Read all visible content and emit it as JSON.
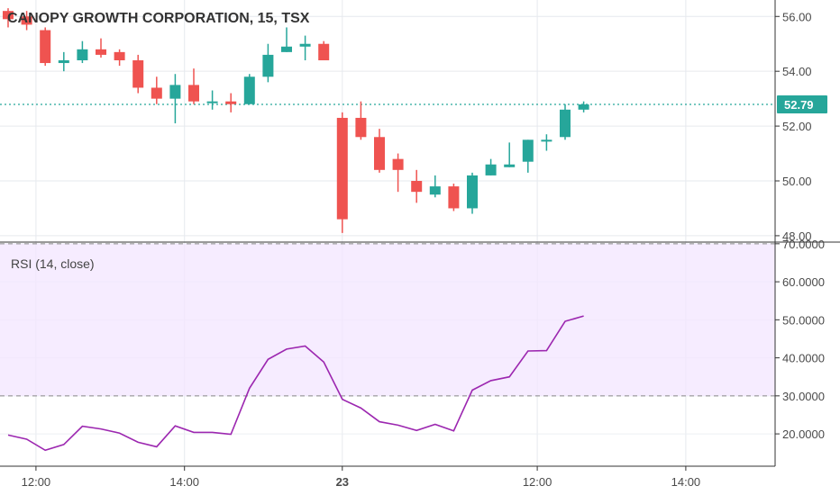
{
  "chart_data": [
    {
      "type": "candlestick",
      "title": "CANOPY GROWTH CORPORATION, 15, TSX",
      "ylim": [
        47.8,
        56.6
      ],
      "y_ticks": [
        "48.00",
        "50.00",
        "52.00",
        "54.00",
        "56.00"
      ],
      "last_price": "52.79",
      "colors": {
        "up": "#26a69a",
        "down": "#ef5350",
        "last_price": "#26a69a"
      },
      "candles": [
        {
          "x": 0,
          "o": 56.2,
          "h": 56.3,
          "l": 55.6,
          "c": 55.9
        },
        {
          "x": 1,
          "o": 56.0,
          "h": 56.2,
          "l": 55.5,
          "c": 55.7
        },
        {
          "x": 2,
          "o": 55.5,
          "h": 55.6,
          "l": 54.2,
          "c": 54.3
        },
        {
          "x": 3,
          "o": 54.3,
          "h": 54.7,
          "l": 54.0,
          "c": 54.4
        },
        {
          "x": 4,
          "o": 54.4,
          "h": 55.1,
          "l": 54.3,
          "c": 54.8
        },
        {
          "x": 5,
          "o": 54.8,
          "h": 55.2,
          "l": 54.5,
          "c": 54.6
        },
        {
          "x": 6,
          "o": 54.7,
          "h": 54.8,
          "l": 54.2,
          "c": 54.4
        },
        {
          "x": 7,
          "o": 54.4,
          "h": 54.6,
          "l": 53.2,
          "c": 53.4
        },
        {
          "x": 8,
          "o": 53.4,
          "h": 53.8,
          "l": 52.8,
          "c": 53.0
        },
        {
          "x": 9,
          "o": 53.0,
          "h": 53.9,
          "l": 52.1,
          "c": 53.5
        },
        {
          "x": 10,
          "o": 53.5,
          "h": 54.1,
          "l": 52.8,
          "c": 52.9
        },
        {
          "x": 11,
          "o": 52.9,
          "h": 53.3,
          "l": 52.6,
          "c": 52.9
        },
        {
          "x": 12,
          "o": 52.9,
          "h": 53.2,
          "l": 52.5,
          "c": 52.8
        },
        {
          "x": 13,
          "o": 52.8,
          "h": 53.9,
          "l": 52.8,
          "c": 53.8
        },
        {
          "x": 14,
          "o": 53.8,
          "h": 55.0,
          "l": 53.6,
          "c": 54.6
        },
        {
          "x": 15,
          "o": 54.7,
          "h": 55.6,
          "l": 54.7,
          "c": 54.9
        },
        {
          "x": 16,
          "o": 54.9,
          "h": 55.3,
          "l": 54.4,
          "c": 55.0
        },
        {
          "x": 17,
          "o": 55.0,
          "h": 55.1,
          "l": 54.4,
          "c": 54.4
        },
        {
          "x": 18,
          "o": 52.3,
          "h": 52.5,
          "l": 48.1,
          "c": 48.6
        },
        {
          "x": 19,
          "o": 52.3,
          "h": 52.9,
          "l": 51.5,
          "c": 51.6
        },
        {
          "x": 20,
          "o": 51.6,
          "h": 51.9,
          "l": 50.3,
          "c": 50.4
        },
        {
          "x": 21,
          "o": 50.8,
          "h": 51.0,
          "l": 49.6,
          "c": 50.4
        },
        {
          "x": 22,
          "o": 50.0,
          "h": 50.4,
          "l": 49.2,
          "c": 49.6
        },
        {
          "x": 23,
          "o": 49.5,
          "h": 50.2,
          "l": 49.4,
          "c": 49.8
        },
        {
          "x": 24,
          "o": 49.8,
          "h": 49.9,
          "l": 48.9,
          "c": 49.0
        },
        {
          "x": 25,
          "o": 49.0,
          "h": 50.3,
          "l": 48.8,
          "c": 50.2
        },
        {
          "x": 26,
          "o": 50.2,
          "h": 50.8,
          "l": 50.2,
          "c": 50.6
        },
        {
          "x": 27,
          "o": 50.5,
          "h": 51.4,
          "l": 50.5,
          "c": 50.6
        },
        {
          "x": 28,
          "o": 50.7,
          "h": 51.5,
          "l": 50.3,
          "c": 51.5
        },
        {
          "x": 29,
          "o": 51.5,
          "h": 51.7,
          "l": 51.1,
          "c": 51.5
        },
        {
          "x": 30,
          "o": 51.6,
          "h": 52.8,
          "l": 51.5,
          "c": 52.6
        },
        {
          "x": 31,
          "o": 52.6,
          "h": 52.9,
          "l": 52.5,
          "c": 52.79
        }
      ]
    },
    {
      "type": "line",
      "title": "RSI (14, close)",
      "ylim": [
        11.5,
        70.2
      ],
      "y_ticks": [
        "20.0000",
        "30.0000",
        "40.0000",
        "50.0000",
        "60.0000",
        "70.0000"
      ],
      "band": [
        30,
        70
      ],
      "colors": {
        "line": "#9c27b0",
        "band": "#f3e5ff",
        "band_lines": "#888888"
      },
      "x": [
        0,
        1,
        2,
        3,
        4,
        5,
        6,
        7,
        8,
        9,
        10,
        11,
        12,
        13,
        14,
        15,
        16,
        17,
        18,
        19,
        20,
        21,
        22,
        23,
        24,
        25,
        26,
        27,
        28,
        29,
        30,
        31
      ],
      "values": [
        19.7,
        18.6,
        15.7,
        17.2,
        22.0,
        21.3,
        20.2,
        17.8,
        16.6,
        22.1,
        20.4,
        20.4,
        19.9,
        32.0,
        39.6,
        42.3,
        43.1,
        38.9,
        29.1,
        26.8,
        23.2,
        22.3,
        20.9,
        22.5,
        20.8,
        31.5,
        34.0,
        35.0,
        41.8,
        41.9,
        49.6,
        51.0
      ]
    }
  ],
  "x_axis": {
    "ticks": [
      {
        "x": 1.5,
        "label": "12:00",
        "bold": false
      },
      {
        "x": 9.5,
        "label": "14:00",
        "bold": false
      },
      {
        "x": 18,
        "label": "23",
        "bold": true
      },
      {
        "x": 28.5,
        "label": "12:00",
        "bold": false
      },
      {
        "x": 36.5,
        "label": "14:00",
        "bold": false
      }
    ]
  }
}
